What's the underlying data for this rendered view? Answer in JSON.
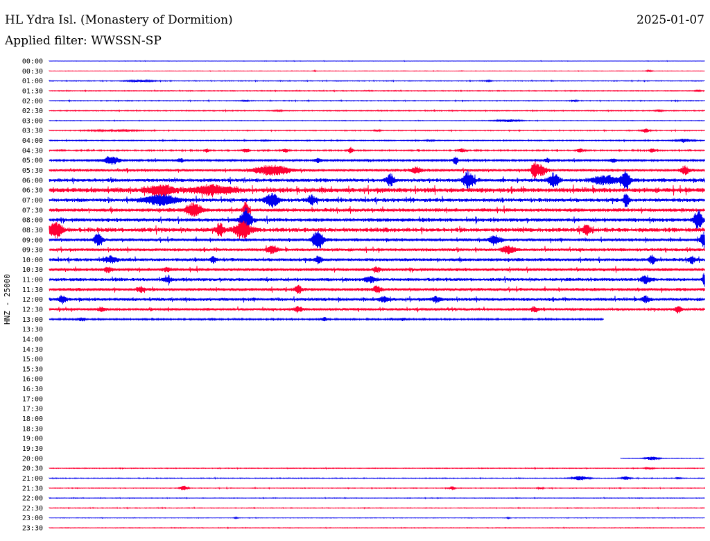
{
  "header": {
    "title": "HL Ydra Isl. (Monastery of Dormition)",
    "date": "2025-01-07",
    "filter": "Applied filter: WWSSN-SP"
  },
  "axis": {
    "ylabel": "HNZ - 25000"
  },
  "colors": {
    "blue": "#0000ee",
    "red": "#ff0033",
    "text": "#000000",
    "background": "#ffffff"
  },
  "chart_data": {
    "type": "line",
    "title": "",
    "xlabel": "",
    "ylabel": "HNZ - 25000",
    "trace_minutes": 30,
    "rows": [
      {
        "label": "00:00",
        "color": "blue",
        "start": 0.0,
        "end": 1.0,
        "noise": 0.3,
        "events": []
      },
      {
        "label": "00:30",
        "color": "red",
        "start": 0.0,
        "end": 1.0,
        "noise": 0.3,
        "events": [
          [
            0.405,
            0.8,
            0.002
          ],
          [
            0.915,
            1.2,
            0.004
          ]
        ]
      },
      {
        "label": "01:00",
        "color": "blue",
        "start": 0.0,
        "end": 1.0,
        "noise": 0.5,
        "events": [
          [
            0.14,
            1.2,
            0.02
          ],
          [
            0.67,
            0.8,
            0.005
          ]
        ]
      },
      {
        "label": "01:30",
        "color": "red",
        "start": 0.0,
        "end": 1.0,
        "noise": 0.5,
        "events": [
          [
            0.99,
            1.4,
            0.004
          ]
        ]
      },
      {
        "label": "02:00",
        "color": "blue",
        "start": 0.0,
        "end": 1.0,
        "noise": 0.6,
        "events": [
          [
            0.3,
            1.0,
            0.005
          ],
          [
            0.8,
            1.0,
            0.005
          ]
        ]
      },
      {
        "label": "02:30",
        "color": "red",
        "start": 0.0,
        "end": 1.0,
        "noise": 0.6,
        "events": [
          [
            0.35,
            1.0,
            0.005
          ],
          [
            0.93,
            1.5,
            0.005
          ]
        ]
      },
      {
        "label": "03:00",
        "color": "blue",
        "start": 0.0,
        "end": 1.0,
        "noise": 0.4,
        "events": [
          [
            0.7,
            1.8,
            0.018
          ]
        ]
      },
      {
        "label": "03:30",
        "color": "red",
        "start": 0.0,
        "end": 1.0,
        "noise": 0.6,
        "events": [
          [
            0.1,
            1.0,
            0.04
          ],
          [
            0.5,
            1.2,
            0.005
          ],
          [
            0.91,
            3.0,
            0.006
          ]
        ]
      },
      {
        "label": "04:00",
        "color": "blue",
        "start": 0.0,
        "end": 1.0,
        "noise": 0.7,
        "events": [
          [
            0.33,
            1.2,
            0.005
          ],
          [
            0.58,
            1.2,
            0.005
          ],
          [
            0.97,
            2.2,
            0.012
          ]
        ]
      },
      {
        "label": "04:30",
        "color": "red",
        "start": 0.0,
        "end": 1.0,
        "noise": 1.0,
        "events": [
          [
            0.24,
            2.5,
            0.004
          ],
          [
            0.3,
            3.0,
            0.005
          ],
          [
            0.36,
            2.5,
            0.005
          ],
          [
            0.46,
            4.5,
            0.004
          ],
          [
            0.63,
            2.5,
            0.005
          ],
          [
            0.81,
            3.0,
            0.005
          ],
          [
            0.92,
            2.5,
            0.005
          ]
        ]
      },
      {
        "label": "05:00",
        "color": "blue",
        "start": 0.0,
        "end": 1.0,
        "noise": 1.5,
        "events": [
          [
            0.095,
            6.0,
            0.012
          ],
          [
            0.2,
            3.0,
            0.005
          ],
          [
            0.41,
            3.0,
            0.005
          ],
          [
            0.62,
            6.0,
            0.004
          ],
          [
            0.76,
            3.0,
            0.005
          ],
          [
            0.86,
            3.0,
            0.005
          ]
        ]
      },
      {
        "label": "05:30",
        "color": "red",
        "start": 0.0,
        "end": 1.0,
        "noise": 2.0,
        "events": [
          [
            0.34,
            7.0,
            0.025
          ],
          [
            0.56,
            4.0,
            0.008
          ],
          [
            0.74,
            12.0,
            0.004
          ],
          [
            0.75,
            8.0,
            0.008
          ],
          [
            0.97,
            6.0,
            0.006
          ]
        ]
      },
      {
        "label": "06:00",
        "color": "blue",
        "start": 0.0,
        "end": 1.0,
        "noise": 3.0,
        "events": [
          [
            0.52,
            8.0,
            0.006
          ],
          [
            0.64,
            12.0,
            0.008
          ],
          [
            0.77,
            9.0,
            0.008
          ],
          [
            0.85,
            6.0,
            0.02
          ],
          [
            0.88,
            14.0,
            0.006
          ]
        ]
      },
      {
        "label": "06:30",
        "color": "red",
        "start": 0.0,
        "end": 1.0,
        "noise": 4.0,
        "events": [
          [
            0.17,
            7.0,
            0.02
          ],
          [
            0.25,
            6.0,
            0.03
          ]
        ]
      },
      {
        "label": "07:00",
        "color": "blue",
        "start": 0.0,
        "end": 1.0,
        "noise": 3.0,
        "events": [
          [
            0.17,
            7.0,
            0.025
          ],
          [
            0.34,
            9.0,
            0.01
          ],
          [
            0.4,
            6.0,
            0.006
          ],
          [
            0.88,
            10.0,
            0.004
          ]
        ]
      },
      {
        "label": "07:30",
        "color": "red",
        "start": 0.0,
        "end": 1.0,
        "noise": 3.0,
        "events": [
          [
            0.22,
            9.0,
            0.012
          ],
          [
            0.3,
            12.0,
            0.004
          ]
        ]
      },
      {
        "label": "08:00",
        "color": "blue",
        "start": 0.0,
        "end": 1.0,
        "noise": 3.0,
        "events": [
          [
            0.3,
            16.0,
            0.008
          ],
          [
            0.99,
            14.0,
            0.006
          ]
        ]
      },
      {
        "label": "08:30",
        "color": "red",
        "start": 0.0,
        "end": 1.0,
        "noise": 3.5,
        "events": [
          [
            0.01,
            10.0,
            0.01
          ],
          [
            0.26,
            8.0,
            0.006
          ],
          [
            0.295,
            12.0,
            0.012
          ],
          [
            0.82,
            7.0,
            0.006
          ]
        ]
      },
      {
        "label": "09:00",
        "color": "blue",
        "start": 0.0,
        "end": 1.0,
        "noise": 2.5,
        "events": [
          [
            0.075,
            10.0,
            0.006
          ],
          [
            0.41,
            14.0,
            0.008
          ],
          [
            0.68,
            5.0,
            0.01
          ],
          [
            1.0,
            12.0,
            0.006
          ]
        ]
      },
      {
        "label": "09:30",
        "color": "red",
        "start": 0.0,
        "end": 1.0,
        "noise": 2.5,
        "events": [
          [
            0.34,
            5.0,
            0.008
          ],
          [
            0.7,
            5.0,
            0.01
          ]
        ]
      },
      {
        "label": "10:00",
        "color": "blue",
        "start": 0.0,
        "end": 1.0,
        "noise": 2.5,
        "events": [
          [
            0.095,
            5.0,
            0.008
          ],
          [
            0.25,
            4.0,
            0.005
          ],
          [
            0.41,
            5.0,
            0.005
          ],
          [
            0.92,
            6.0,
            0.005
          ],
          [
            0.98,
            5.0,
            0.005
          ]
        ]
      },
      {
        "label": "10:30",
        "color": "red",
        "start": 0.0,
        "end": 1.0,
        "noise": 2.5,
        "events": [
          [
            0.09,
            4.0,
            0.006
          ],
          [
            0.18,
            3.0,
            0.006
          ],
          [
            0.5,
            3.0,
            0.006
          ]
        ]
      },
      {
        "label": "11:00",
        "color": "blue",
        "start": 0.0,
        "end": 1.0,
        "noise": 2.5,
        "events": [
          [
            0.18,
            4.0,
            0.006
          ],
          [
            0.49,
            4.0,
            0.008
          ],
          [
            0.91,
            5.0,
            0.008
          ],
          [
            1.0,
            10.0,
            0.003
          ]
        ]
      },
      {
        "label": "11:30",
        "color": "red",
        "start": 0.0,
        "end": 1.0,
        "noise": 2.5,
        "events": [
          [
            0.14,
            4.0,
            0.006
          ],
          [
            0.38,
            5.0,
            0.006
          ],
          [
            0.5,
            5.0,
            0.006
          ]
        ]
      },
      {
        "label": "12:00",
        "color": "blue",
        "start": 0.0,
        "end": 1.0,
        "noise": 2.5,
        "events": [
          [
            0.02,
            5.0,
            0.006
          ],
          [
            0.51,
            4.0,
            0.006
          ],
          [
            0.59,
            4.0,
            0.006
          ],
          [
            0.91,
            4.0,
            0.006
          ]
        ]
      },
      {
        "label": "12:30",
        "color": "red",
        "start": 0.0,
        "end": 1.0,
        "noise": 2.0,
        "events": [
          [
            0.08,
            3.0,
            0.006
          ],
          [
            0.38,
            4.0,
            0.006
          ],
          [
            0.74,
            4.0,
            0.005
          ],
          [
            0.96,
            5.0,
            0.005
          ]
        ]
      },
      {
        "label": "13:00",
        "color": "blue",
        "start": 0.0,
        "end": 0.846,
        "noise": 1.2,
        "events": [
          [
            0.05,
            2.5,
            0.006
          ],
          [
            0.42,
            2.5,
            0.005
          ],
          [
            0.54,
            2.0,
            0.005
          ]
        ]
      },
      {
        "label": "13:30",
        "color": "red",
        "start": 0,
        "end": 0,
        "noise": 0,
        "events": []
      },
      {
        "label": "14:00",
        "color": "blue",
        "start": 0,
        "end": 0,
        "noise": 0,
        "events": []
      },
      {
        "label": "14:30",
        "color": "red",
        "start": 0,
        "end": 0,
        "noise": 0,
        "events": []
      },
      {
        "label": "15:00",
        "color": "blue",
        "start": 0,
        "end": 0,
        "noise": 0,
        "events": []
      },
      {
        "label": "15:30",
        "color": "red",
        "start": 0,
        "end": 0,
        "noise": 0,
        "events": []
      },
      {
        "label": "16:00",
        "color": "blue",
        "start": 0,
        "end": 0,
        "noise": 0,
        "events": []
      },
      {
        "label": "16:30",
        "color": "red",
        "start": 0,
        "end": 0,
        "noise": 0,
        "events": []
      },
      {
        "label": "17:00",
        "color": "blue",
        "start": 0,
        "end": 0,
        "noise": 0,
        "events": []
      },
      {
        "label": "17:30",
        "color": "red",
        "start": 0,
        "end": 0,
        "noise": 0,
        "events": []
      },
      {
        "label": "18:00",
        "color": "blue",
        "start": 0,
        "end": 0,
        "noise": 0,
        "events": []
      },
      {
        "label": "18:30",
        "color": "red",
        "start": 0,
        "end": 0,
        "noise": 0,
        "events": []
      },
      {
        "label": "19:00",
        "color": "blue",
        "start": 0,
        "end": 0,
        "noise": 0,
        "events": []
      },
      {
        "label": "19:30",
        "color": "red",
        "start": 0,
        "end": 0,
        "noise": 0,
        "events": []
      },
      {
        "label": "20:00",
        "color": "blue",
        "start": 0.872,
        "end": 1.0,
        "noise": 0.4,
        "events": [
          [
            0.92,
            2.5,
            0.01
          ]
        ]
      },
      {
        "label": "20:30",
        "color": "red",
        "start": 0.0,
        "end": 1.0,
        "noise": 0.5,
        "events": [
          [
            0.915,
            1.5,
            0.006
          ]
        ]
      },
      {
        "label": "21:00",
        "color": "blue",
        "start": 0.0,
        "end": 1.0,
        "noise": 0.5,
        "events": [
          [
            0.81,
            3.0,
            0.012
          ],
          [
            0.88,
            3.0,
            0.006
          ],
          [
            0.96,
            1.2,
            0.004
          ]
        ]
      },
      {
        "label": "21:30",
        "color": "red",
        "start": 0.0,
        "end": 1.0,
        "noise": 0.6,
        "events": [
          [
            0.205,
            3.0,
            0.006
          ],
          [
            0.615,
            2.5,
            0.004
          ],
          [
            0.75,
            1.2,
            0.004
          ]
        ]
      },
      {
        "label": "22:00",
        "color": "blue",
        "start": 0.0,
        "end": 1.0,
        "noise": 0.4,
        "events": []
      },
      {
        "label": "22:30",
        "color": "red",
        "start": 0.0,
        "end": 1.0,
        "noise": 0.5,
        "events": []
      },
      {
        "label": "23:00",
        "color": "blue",
        "start": 0.0,
        "end": 1.0,
        "noise": 0.3,
        "events": [
          [
            0.285,
            0.8,
            0.003
          ],
          [
            0.7,
            0.8,
            0.003
          ]
        ]
      },
      {
        "label": "23:30",
        "color": "red",
        "start": 0.0,
        "end": 1.0,
        "noise": 0.4,
        "events": []
      }
    ]
  }
}
